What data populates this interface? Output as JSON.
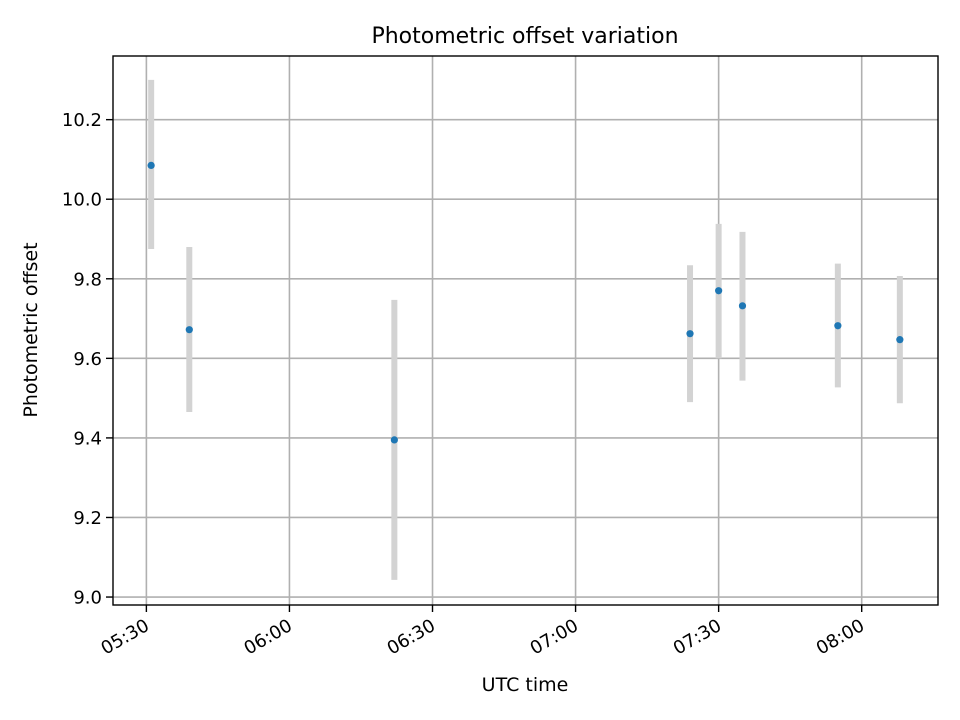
{
  "chart_data": {
    "type": "scatter",
    "title": "Photometric offset variation",
    "xlabel": "UTC time",
    "ylabel": "Photometric offset",
    "xlim": [
      "05:23",
      "08:16"
    ],
    "ylim": [
      8.98,
      10.36
    ],
    "x_ticks": [
      "05:30",
      "06:00",
      "06:30",
      "07:00",
      "07:30",
      "08:00"
    ],
    "y_ticks": [
      9.0,
      9.2,
      9.4,
      9.6,
      9.8,
      10.0,
      10.2
    ],
    "y_tick_labels": [
      "9.0",
      "9.2",
      "9.4",
      "9.6",
      "9.8",
      "10.0",
      "10.2"
    ],
    "grid": true,
    "colors": {
      "point": "#1f77b4",
      "error_bar": "#d3d3d3",
      "grid": "#b0b0b0"
    },
    "series": [
      {
        "points": [
          {
            "x": "05:31",
            "y": 10.085,
            "y_low": 9.875,
            "y_high": 10.3
          },
          {
            "x": "05:39",
            "y": 9.672,
            "y_low": 9.465,
            "y_high": 9.88
          },
          {
            "x": "06:22",
            "y": 9.395,
            "y_low": 9.043,
            "y_high": 9.747
          },
          {
            "x": "07:24",
            "y": 9.662,
            "y_low": 9.49,
            "y_high": 9.834
          },
          {
            "x": "07:30",
            "y": 9.77,
            "y_low": 9.6,
            "y_high": 9.938
          },
          {
            "x": "07:35",
            "y": 9.732,
            "y_low": 9.544,
            "y_high": 9.918
          },
          {
            "x": "07:55",
            "y": 9.682,
            "y_low": 9.527,
            "y_high": 9.838
          },
          {
            "x": "08:08",
            "y": 9.647,
            "y_low": 9.487,
            "y_high": 9.807
          }
        ]
      }
    ]
  }
}
